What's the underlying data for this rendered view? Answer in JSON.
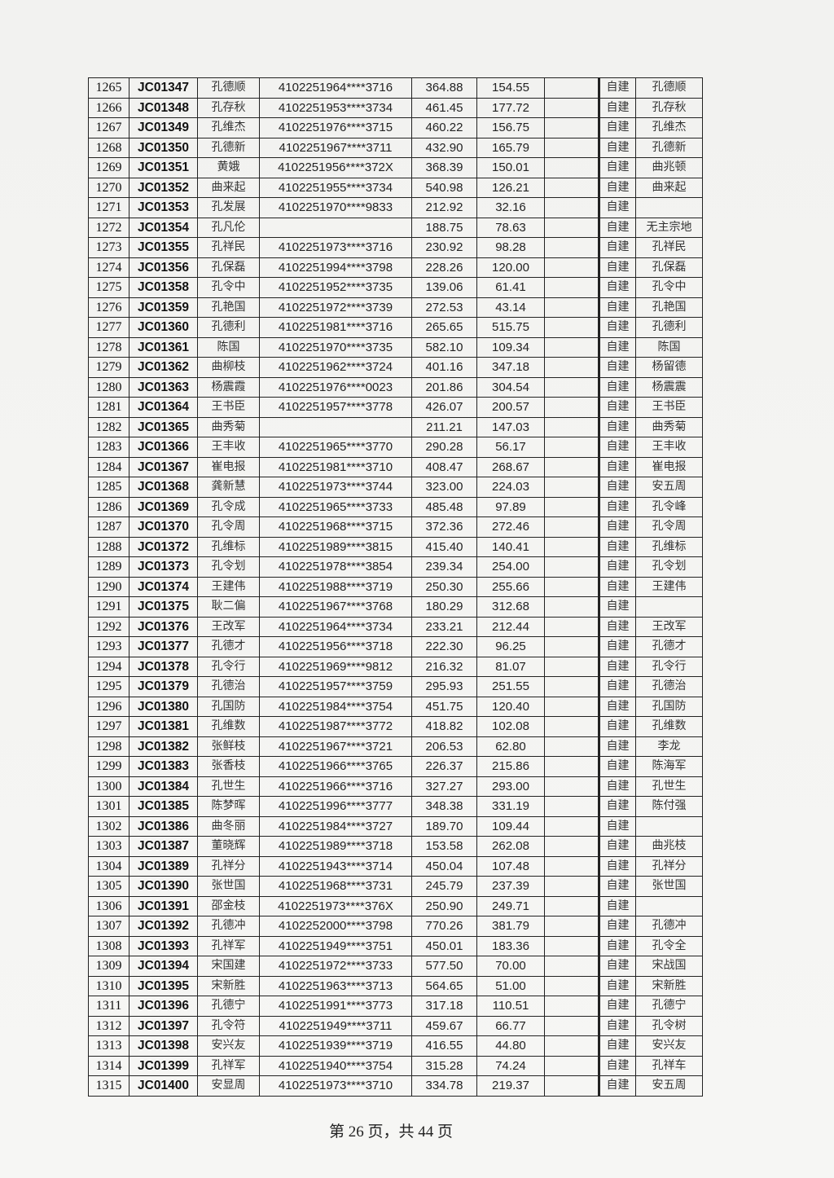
{
  "table": {
    "rows": [
      [
        "1265",
        "JC01347",
        "孔德顺",
        "4102251964****3716",
        "364.88",
        "154.55",
        "",
        "自建",
        "孔德顺"
      ],
      [
        "1266",
        "JC01348",
        "孔存秋",
        "4102251953****3734",
        "461.45",
        "177.72",
        "",
        "自建",
        "孔存秋"
      ],
      [
        "1267",
        "JC01349",
        "孔维杰",
        "4102251976****3715",
        "460.22",
        "156.75",
        "",
        "自建",
        "孔维杰"
      ],
      [
        "1268",
        "JC01350",
        "孔德新",
        "4102251967****3711",
        "432.90",
        "165.79",
        "",
        "自建",
        "孔德新"
      ],
      [
        "1269",
        "JC01351",
        "黄娥",
        "4102251956****372X",
        "368.39",
        "150.01",
        "",
        "自建",
        "曲兆顿"
      ],
      [
        "1270",
        "JC01352",
        "曲来起",
        "4102251955****3734",
        "540.98",
        "126.21",
        "",
        "自建",
        "曲来起"
      ],
      [
        "1271",
        "JC01353",
        "孔发展",
        "4102251970****9833",
        "212.92",
        "32.16",
        "",
        "自建",
        ""
      ],
      [
        "1272",
        "JC01354",
        "孔凡伦",
        "",
        "188.75",
        "78.63",
        "",
        "自建",
        "无主宗地"
      ],
      [
        "1273",
        "JC01355",
        "孔祥民",
        "4102251973****3716",
        "230.92",
        "98.28",
        "",
        "自建",
        "孔祥民"
      ],
      [
        "1274",
        "JC01356",
        "孔保磊",
        "4102251994****3798",
        "228.26",
        "120.00",
        "",
        "自建",
        "孔保磊"
      ],
      [
        "1275",
        "JC01358",
        "孔令中",
        "4102251952****3735",
        "139.06",
        "61.41",
        "",
        "自建",
        "孔令中"
      ],
      [
        "1276",
        "JC01359",
        "孔艳国",
        "4102251972****3739",
        "272.53",
        "43.14",
        "",
        "自建",
        "孔艳国"
      ],
      [
        "1277",
        "JC01360",
        "孔德利",
        "4102251981****3716",
        "265.65",
        "515.75",
        "",
        "自建",
        "孔德利"
      ],
      [
        "1278",
        "JC01361",
        "陈国",
        "4102251970****3735",
        "582.10",
        "109.34",
        "",
        "自建",
        "陈国"
      ],
      [
        "1279",
        "JC01362",
        "曲柳枝",
        "4102251962****3724",
        "401.16",
        "347.18",
        "",
        "自建",
        "杨留德"
      ],
      [
        "1280",
        "JC01363",
        "杨震霞",
        "4102251976****0023",
        "201.86",
        "304.54",
        "",
        "自建",
        "杨震震"
      ],
      [
        "1281",
        "JC01364",
        "王书臣",
        "4102251957****3778",
        "426.07",
        "200.57",
        "",
        "自建",
        "王书臣"
      ],
      [
        "1282",
        "JC01365",
        "曲秀菊",
        "",
        "211.21",
        "147.03",
        "",
        "自建",
        "曲秀菊"
      ],
      [
        "1283",
        "JC01366",
        "王丰收",
        "4102251965****3770",
        "290.28",
        "56.17",
        "",
        "自建",
        "王丰收"
      ],
      [
        "1284",
        "JC01367",
        "崔电报",
        "4102251981****3710",
        "408.47",
        "268.67",
        "",
        "自建",
        "崔电报"
      ],
      [
        "1285",
        "JC01368",
        "龚新慧",
        "4102251973****3744",
        "323.00",
        "224.03",
        "",
        "自建",
        "安五周"
      ],
      [
        "1286",
        "JC01369",
        "孔令成",
        "4102251965****3733",
        "485.48",
        "97.89",
        "",
        "自建",
        "孔令峰"
      ],
      [
        "1287",
        "JC01370",
        "孔令周",
        "4102251968****3715",
        "372.36",
        "272.46",
        "",
        "自建",
        "孔令周"
      ],
      [
        "1288",
        "JC01372",
        "孔维标",
        "4102251989****3815",
        "415.40",
        "140.41",
        "",
        "自建",
        "孔维标"
      ],
      [
        "1289",
        "JC01373",
        "孔令划",
        "4102251978****3854",
        "239.34",
        "254.00",
        "",
        "自建",
        "孔令划"
      ],
      [
        "1290",
        "JC01374",
        "王建伟",
        "4102251988****3719",
        "250.30",
        "255.66",
        "",
        "自建",
        "王建伟"
      ],
      [
        "1291",
        "JC01375",
        "耿二偏",
        "4102251967****3768",
        "180.29",
        "312.68",
        "",
        "自建",
        ""
      ],
      [
        "1292",
        "JC01376",
        "王改军",
        "4102251964****3734",
        "233.21",
        "212.44",
        "",
        "自建",
        "王改军"
      ],
      [
        "1293",
        "JC01377",
        "孔德才",
        "4102251956****3718",
        "222.30",
        "96.25",
        "",
        "自建",
        "孔德才"
      ],
      [
        "1294",
        "JC01378",
        "孔令行",
        "4102251969****9812",
        "216.32",
        "81.07",
        "",
        "自建",
        "孔令行"
      ],
      [
        "1295",
        "JC01379",
        "孔德治",
        "4102251957****3759",
        "295.93",
        "251.55",
        "",
        "自建",
        "孔德治"
      ],
      [
        "1296",
        "JC01380",
        "孔国防",
        "4102251984****3754",
        "451.75",
        "120.40",
        "",
        "自建",
        "孔国防"
      ],
      [
        "1297",
        "JC01381",
        "孔维数",
        "4102251987****3772",
        "418.82",
        "102.08",
        "",
        "自建",
        "孔维数"
      ],
      [
        "1298",
        "JC01382",
        "张鲜枝",
        "4102251967****3721",
        "206.53",
        "62.80",
        "",
        "自建",
        "李龙"
      ],
      [
        "1299",
        "JC01383",
        "张香枝",
        "4102251966****3765",
        "226.37",
        "215.86",
        "",
        "自建",
        "陈海军"
      ],
      [
        "1300",
        "JC01384",
        "孔世生",
        "4102251966****3716",
        "327.27",
        "293.00",
        "",
        "自建",
        "孔世生"
      ],
      [
        "1301",
        "JC01385",
        "陈梦晖",
        "4102251996****3777",
        "348.38",
        "331.19",
        "",
        "自建",
        "陈付强"
      ],
      [
        "1302",
        "JC01386",
        "曲冬丽",
        "4102251984****3727",
        "189.70",
        "109.44",
        "",
        "自建",
        ""
      ],
      [
        "1303",
        "JC01387",
        "董晓辉",
        "4102251989****3718",
        "153.58",
        "262.08",
        "",
        "自建",
        "曲兆枝"
      ],
      [
        "1304",
        "JC01389",
        "孔祥分",
        "4102251943****3714",
        "450.04",
        "107.48",
        "",
        "自建",
        "孔祥分"
      ],
      [
        "1305",
        "JC01390",
        "张世国",
        "4102251968****3731",
        "245.79",
        "237.39",
        "",
        "自建",
        "张世国"
      ],
      [
        "1306",
        "JC01391",
        "邵金枝",
        "4102251973****376X",
        "250.90",
        "249.71",
        "",
        "自建",
        ""
      ],
      [
        "1307",
        "JC01392",
        "孔德冲",
        "4102252000****3798",
        "770.26",
        "381.79",
        "",
        "自建",
        "孔德冲"
      ],
      [
        "1308",
        "JC01393",
        "孔祥军",
        "4102251949****3751",
        "450.01",
        "183.36",
        "",
        "自建",
        "孔令全"
      ],
      [
        "1309",
        "JC01394",
        "宋国建",
        "4102251972****3733",
        "577.50",
        "70.00",
        "",
        "自建",
        "宋战国"
      ],
      [
        "1310",
        "JC01395",
        "宋新胜",
        "4102251963****3713",
        "564.65",
        "51.00",
        "",
        "自建",
        "宋新胜"
      ],
      [
        "1311",
        "JC01396",
        "孔德宁",
        "4102251991****3773",
        "317.18",
        "110.51",
        "",
        "自建",
        "孔德宁"
      ],
      [
        "1312",
        "JC01397",
        "孔令符",
        "4102251949****3711",
        "459.67",
        "66.77",
        "",
        "自建",
        "孔令树"
      ],
      [
        "1313",
        "JC01398",
        "安兴友",
        "4102251939****3719",
        "416.55",
        "44.80",
        "",
        "自建",
        "安兴友"
      ],
      [
        "1314",
        "JC01399",
        "孔祥军",
        "4102251940****3754",
        "315.28",
        "74.24",
        "",
        "自建",
        "孔祥车"
      ],
      [
        "1315",
        "JC01400",
        "安显周",
        "4102251973****3710",
        "334.78",
        "219.37",
        "",
        "自建",
        "安五周"
      ]
    ]
  },
  "footer": {
    "page_label": "第 26 页，共 44 页"
  }
}
